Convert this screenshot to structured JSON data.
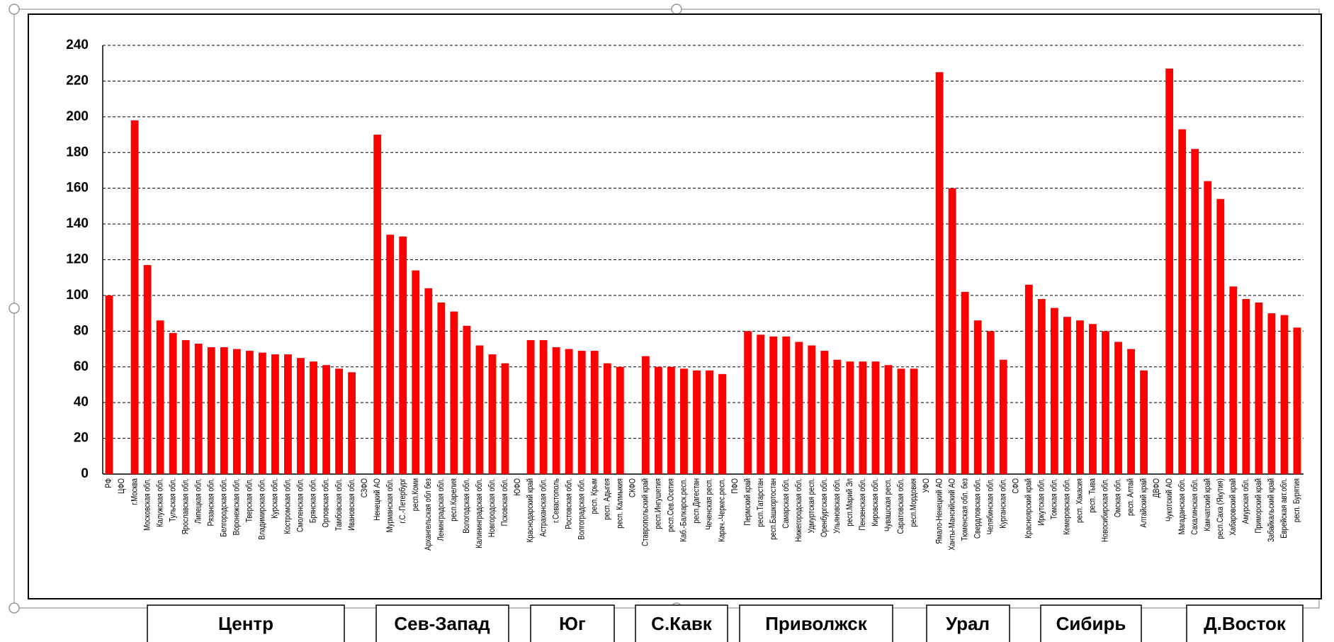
{
  "chart_data": {
    "type": "bar",
    "categories": [
      "РФ",
      "ЦФО",
      "г.Москва",
      "Московская обл.",
      "Калужская обл.",
      "Тульская обл.",
      "Ярославская обл.",
      "Липецкая обл.",
      "Рязанская обл.",
      "Белгородская обл.",
      "Воронежская обл.",
      "Тверская обл.",
      "Владимирская обл.",
      "Курская обл.",
      "Костромская обл.",
      "Смоленская обл.",
      "Брянская обл.",
      "Орловская обл.",
      "Тамбовская обл.",
      "Ивановская обл.",
      "СЗФО",
      "Ненецкий АО",
      "Мурманская обл.",
      "г.С.-Петербург",
      "респ.Коми",
      "Архангельская обл без",
      "Ленинградская обл.",
      "респ.Карелия",
      "Вологодская обл.",
      "Калининградская обл.",
      "Новгородская обл.",
      "Псковская обл.",
      "ЮФО",
      "Краснодарский край",
      "Астраханская обл.",
      "г.Севастополь",
      "Ростовская обл.",
      "Волгоградская обл.",
      "респ. Крым",
      "респ. Адыгея",
      "респ. Калмыкия",
      "СКФО",
      "Ставропольский край",
      "респ.Ингушетия",
      "респ.Сев.Осетия",
      "Каб.-Балкарск.респ.",
      "респ.Дагестан",
      "Чеченская респ.",
      "Карач.-Черкес.респ.",
      "ПФО",
      "Пермский край",
      "респ.Татарстан",
      "респ.Башкортостан",
      "Самарская обл.",
      "Нижегородская обл.",
      "Удмуртская респ.",
      "Оренбургская обл.",
      "Ульяновская обл.",
      "респ.Марий Эл",
      "Пензенская обл.",
      "Кировская обл.",
      "Чувашская респ.",
      "Саратовская обл.",
      "респ.Мордовия",
      "УФО",
      "Ямало-Ненецкий АО",
      "Ханты-Мансийский АО",
      "Тюменская обл. без",
      "Свердловская обл.",
      "Челябинская обл.",
      "Курганская обл.",
      "СФО",
      "Красноярский край",
      "Иркутская обл.",
      "Томская обл.",
      "Кемеровская обл.",
      "респ. Хакасия",
      "респ. Тыва",
      "Новосибирская обл.",
      "Омская обл.",
      "респ. Алтай",
      "Алтайский край",
      "ДВФО",
      "Чукотский АО",
      "Магаданская обл.",
      "Сахалинская обл.",
      "Камчатский край",
      "респ.Саха (Якутия)",
      "Хабаровский край",
      "Амурская обл.",
      "Приморский край",
      "Забайкальский край",
      "Еврейская авт.обл.",
      "респ. Бурятия"
    ],
    "values": [
      100,
      null,
      198,
      117,
      86,
      79,
      75,
      73,
      71,
      71,
      70,
      69,
      68,
      67,
      67,
      65,
      63,
      61,
      59,
      57,
      null,
      190,
      134,
      133,
      114,
      104,
      96,
      91,
      83,
      72,
      67,
      62,
      null,
      75,
      75,
      71,
      70,
      69,
      69,
      62,
      60,
      null,
      66,
      60,
      60,
      59,
      58,
      58,
      56,
      null,
      80,
      78,
      77,
      77,
      74,
      72,
      69,
      64,
      63,
      63,
      63,
      61,
      59,
      59,
      null,
      225,
      160,
      102,
      86,
      80,
      64,
      null,
      106,
      98,
      93,
      88,
      86,
      84,
      80,
      74,
      70,
      58,
      null,
      227,
      193,
      182,
      164,
      154,
      105,
      98,
      96,
      90,
      89,
      82
    ],
    "color": "#ff0000",
    "ylim": [
      0,
      240
    ],
    "yticks": [
      0,
      20,
      40,
      60,
      80,
      100,
      120,
      140,
      160,
      180,
      200,
      220,
      240
    ],
    "grid": true,
    "groups": [
      "Центр",
      "Сев-Запад",
      "Юг",
      "С.Кавк",
      "Приволжск",
      "Урал",
      "Сибирь",
      "Д.Восток"
    ]
  }
}
